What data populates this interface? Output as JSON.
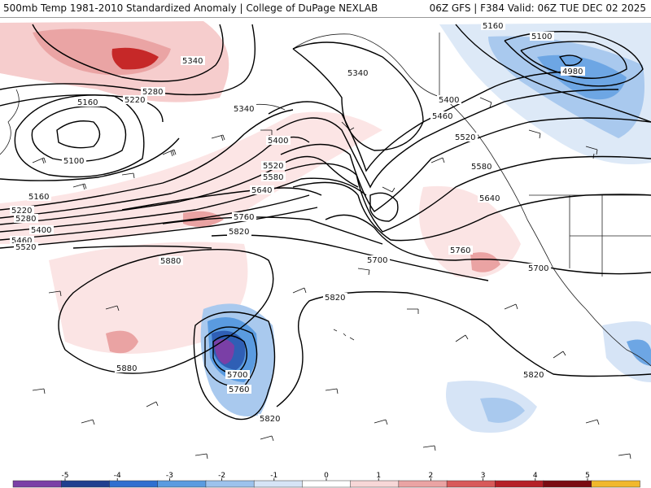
{
  "header": {
    "left": "500mb Temp 1981-2010 Standardized Anomaly | College of DuPage NEXLAB",
    "right": "06Z GFS | F384 Valid: 06Z TUE DEC 02 2025"
  },
  "contour_labels": {
    "l1": "5340",
    "l2": "5280",
    "l3": "5220",
    "l4": "5160",
    "l5": "5100",
    "l6": "5160",
    "l7": "5220",
    "l8": "5280",
    "l9": "5400",
    "l10": "5460",
    "l11": "5520",
    "l12": "5340",
    "l13": "5400",
    "l14": "5520",
    "l15": "5580",
    "l16": "5640",
    "l17": "5760",
    "l18": "5820",
    "l19": "5880",
    "l20": "5880",
    "l21": "5340",
    "l22": "5400",
    "l23": "5460",
    "l24": "5520",
    "l25": "5580",
    "l26": "5640",
    "l27": "5700",
    "l28": "5760",
    "l29": "5700",
    "l30": "5820",
    "l31": "5820",
    "l32": "5160",
    "l33": "5100",
    "l34": "4980",
    "l35": "5700",
    "l36": "5760",
    "l37": "5820"
  },
  "colorbar": {
    "ticks": [
      "-5",
      "-4",
      "-3",
      "-2",
      "-1",
      "0",
      "1",
      "2",
      "3",
      "4",
      "5"
    ],
    "colors": [
      "#7a3fa6",
      "#1f3f8f",
      "#2f6fd0",
      "#5a9be0",
      "#9cc2ec",
      "#d6e4f6",
      "#ffffff",
      "#f7d7d7",
      "#eaa3a3",
      "#d85a5a",
      "#b52027",
      "#7a0c12",
      "#f1b82c"
    ]
  }
}
